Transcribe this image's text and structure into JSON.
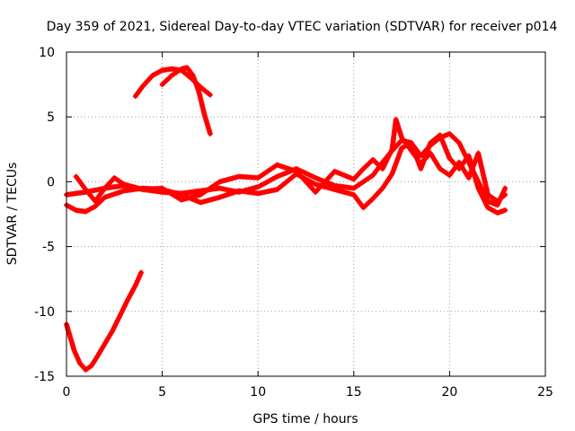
{
  "chart_data": {
    "type": "scatter",
    "title": "Day 359 of 2021, Sidereal Day-to-day VTEC variation (SDTVAR) for receiver p014",
    "xlabel": "GPS time / hours",
    "ylabel": "SDTVAR / TECUs",
    "xlim": [
      0,
      25
    ],
    "ylim": [
      -15,
      10
    ],
    "xticks": [
      0,
      5,
      10,
      15,
      20,
      25
    ],
    "yticks": [
      -15,
      -10,
      -5,
      0,
      5,
      10
    ],
    "xtick_labels": [
      "0",
      "5",
      "10",
      "15",
      "20",
      "25"
    ],
    "ytick_labels": [
      "-15",
      "-10",
      "-5",
      "0",
      "5",
      "10"
    ],
    "grid": true,
    "legend": "none",
    "marker": "+",
    "series_color": "#ff0000",
    "series": [
      {
        "name": "track-high-arc-a",
        "x": [
          3.6,
          4.0,
          4.5,
          5.0,
          5.5,
          6.0,
          6.5,
          7.0,
          7.5
        ],
        "y": [
          6.6,
          7.4,
          8.2,
          8.6,
          8.7,
          8.6,
          8.0,
          7.3,
          6.7
        ]
      },
      {
        "name": "track-high-arc-b",
        "x": [
          5.0,
          5.5,
          6.0,
          6.3,
          6.6,
          6.9,
          7.2,
          7.5
        ],
        "y": [
          7.5,
          8.2,
          8.7,
          8.8,
          8.2,
          7.0,
          5.2,
          3.7
        ]
      },
      {
        "name": "track-low-descent",
        "x": [
          0.0,
          0.2,
          0.4,
          0.7,
          1.0,
          1.3,
          1.6,
          2.0,
          2.4,
          2.8,
          3.2,
          3.6,
          3.9
        ],
        "y": [
          -11.0,
          -12.0,
          -13.0,
          -14.0,
          -14.5,
          -14.2,
          -13.5,
          -12.5,
          -11.5,
          -10.3,
          -9.1,
          -8.0,
          -7.0
        ]
      },
      {
        "name": "track-mid-a",
        "x": [
          0.0,
          1.0,
          2.0,
          3.0,
          4.0,
          5.0,
          6.0,
          7.0,
          8.0,
          9.0,
          10.0,
          11.0,
          12.0,
          13.0,
          14.0,
          15.0,
          16.0,
          16.5,
          17.0,
          17.5,
          18.0,
          18.5,
          19.0,
          19.5,
          20.0,
          20.5,
          21.0,
          21.5,
          22.0,
          22.5,
          22.9
        ],
        "y": [
          -1.0,
          -0.8,
          -0.5,
          -0.3,
          -0.6,
          -0.8,
          -0.9,
          -0.7,
          -0.5,
          -0.8,
          -0.4,
          0.4,
          1.0,
          0.3,
          -0.3,
          -0.5,
          0.5,
          1.5,
          2.4,
          3.2,
          3.0,
          2.0,
          2.8,
          3.4,
          3.7,
          3.0,
          1.5,
          0.0,
          -1.5,
          -1.8,
          -0.5
        ]
      },
      {
        "name": "track-mid-b",
        "x": [
          0.0,
          0.5,
          1.0,
          1.5,
          2.0,
          3.0,
          4.0,
          5.0,
          6.0,
          7.0,
          8.0,
          9.0,
          10.0,
          11.0,
          12.0,
          13.0,
          14.0,
          15.0,
          15.5,
          16.0,
          16.5,
          17.0,
          17.5,
          18.0,
          18.5,
          19.0,
          19.5,
          20.0,
          20.5,
          21.0,
          21.5,
          22.0,
          22.5,
          22.9
        ],
        "y": [
          -1.8,
          -2.2,
          -2.3,
          -1.9,
          -1.2,
          -0.7,
          -0.5,
          -0.6,
          -1.0,
          -1.6,
          -1.2,
          -0.7,
          -0.9,
          -0.6,
          0.6,
          -0.2,
          -0.6,
          -1.0,
          -2.0,
          -1.3,
          -0.5,
          0.6,
          2.6,
          3.0,
          1.0,
          3.0,
          3.6,
          1.8,
          1.0,
          2.0,
          -0.5,
          -2.0,
          -2.4,
          -2.2
        ]
      },
      {
        "name": "track-mid-c",
        "x": [
          0.5,
          1.0,
          1.5,
          2.0,
          2.5,
          3.0,
          4.0,
          5.0,
          6.0,
          7.0,
          8.0,
          9.0,
          10.0,
          11.0,
          12.0,
          13.0,
          14.0,
          15.0,
          15.5,
          16.0,
          16.5,
          17.0,
          17.2,
          17.5,
          18.0,
          18.5,
          19.0,
          19.5,
          20.0,
          20.5,
          21.0,
          21.5,
          22.0,
          22.5,
          22.9
        ],
        "y": [
          0.4,
          -0.6,
          -1.5,
          -0.5,
          0.3,
          -0.2,
          -0.6,
          -0.5,
          -1.4,
          -1.0,
          0.0,
          0.4,
          0.3,
          1.3,
          0.8,
          -0.8,
          0.8,
          0.2,
          1.0,
          1.7,
          1.0,
          2.5,
          4.8,
          3.4,
          2.4,
          1.4,
          2.2,
          1.0,
          0.5,
          1.5,
          0.3,
          2.2,
          -1.0,
          -1.5,
          -1.0
        ]
      }
    ]
  }
}
